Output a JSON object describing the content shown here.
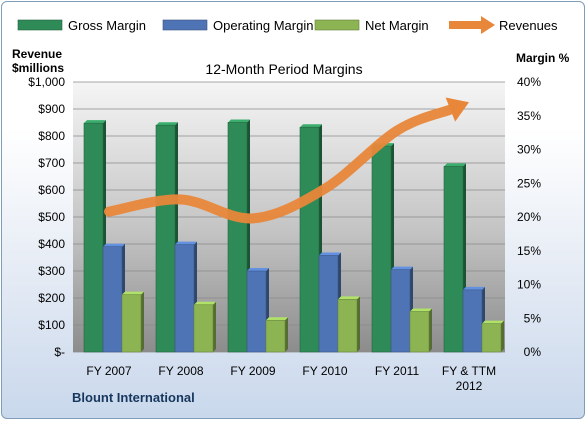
{
  "chart_data": {
    "type": "bar",
    "title": "12-Month Period Margins",
    "left_axis_label_line1": "Revenue",
    "left_axis_label_line2": "$millions",
    "right_axis_label": "Margin %",
    "footer": "Blount International",
    "categories": [
      [
        "FY 2007"
      ],
      [
        "FY 2008"
      ],
      [
        "FY 2009"
      ],
      [
        "FY 2010"
      ],
      [
        "FY 2011"
      ],
      [
        "FY & TTM",
        "2012"
      ]
    ],
    "left_ticks": [
      "$-",
      "$100",
      "$200",
      "$300",
      "$400",
      "$500",
      "$600",
      "$700",
      "$800",
      "$900",
      "$1,000"
    ],
    "right_ticks": [
      "0%",
      "5%",
      "10%",
      "15%",
      "20%",
      "25%",
      "30%",
      "35%",
      "40%"
    ],
    "left_ylim": [
      0,
      1000
    ],
    "right_ylim": [
      0,
      40
    ],
    "series": [
      {
        "name": "Gross Margin",
        "axis": "right",
        "color": "#2e8b57",
        "values": [
          33.9,
          33.6,
          34.0,
          33.3,
          30.5,
          27.5
        ]
      },
      {
        "name": "Operating Margin",
        "axis": "right",
        "color": "#4f74b5",
        "values": [
          15.6,
          15.9,
          12.0,
          14.3,
          12.2,
          9.2
        ]
      },
      {
        "name": "Net Margin",
        "axis": "right",
        "color": "#8db453",
        "values": [
          8.5,
          7.0,
          4.7,
          7.8,
          6.0,
          4.2
        ]
      }
    ],
    "line_series": {
      "name": "Revenues",
      "axis": "left",
      "color": "#e8873a",
      "values": [
        520,
        565,
        495,
        605,
        820,
        925
      ]
    },
    "legend_position": "top",
    "grid": true
  }
}
